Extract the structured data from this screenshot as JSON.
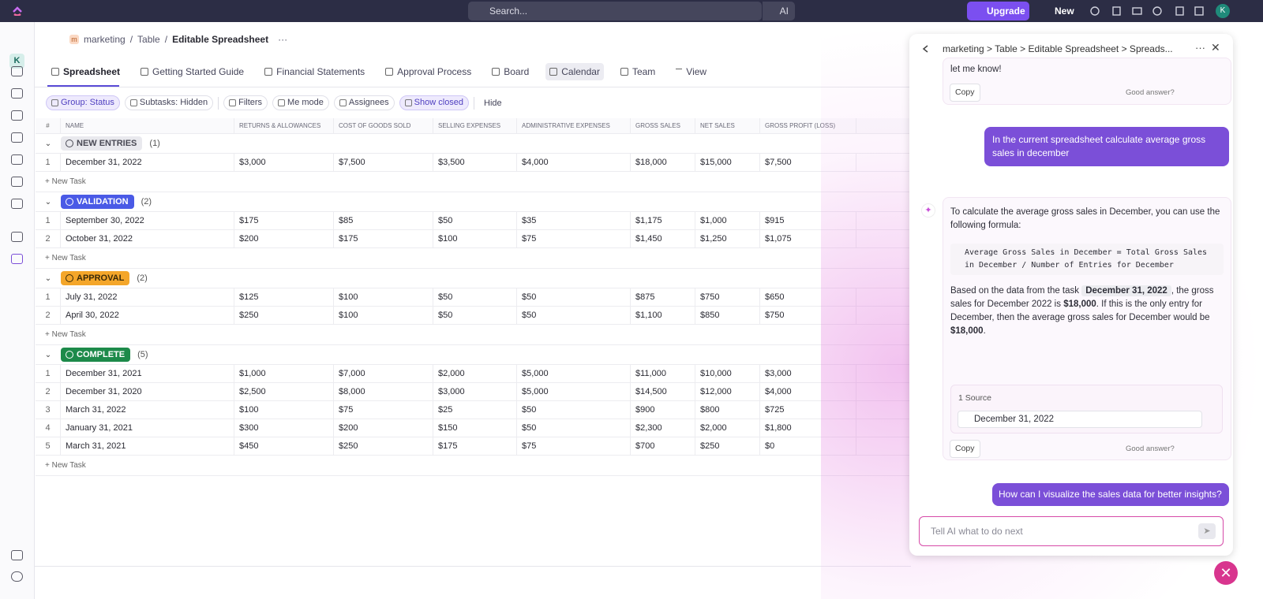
{
  "topbar": {
    "search": "Search...",
    "ai": "AI",
    "upgrade": "Upgrade",
    "new": "New",
    "avatar": "K"
  },
  "sidebar": {
    "workspace": "K"
  },
  "breadcrumb": {
    "space_icon": "m",
    "space": "marketing",
    "folder": "Table",
    "list": "Editable Spreadsheet"
  },
  "tabs": [
    "Spreadsheet",
    "Getting Started Guide",
    "Financial Statements",
    "Approval Process",
    "Board",
    "Calendar",
    "Team"
  ],
  "add_view": "View",
  "toolbar": [
    "Group: Status",
    "Subtasks: Hidden",
    "Filters",
    "Me mode",
    "Assignees",
    "Show closed"
  ],
  "hide": "Hide",
  "table": {
    "columns": [
      "#",
      "NAME",
      "RETURNS & ALLOWANCES",
      "COST OF GOODS SOLD",
      "SELLING EXPENSES",
      "ADMINISTRATIVE EXPENSES",
      "GROSS SALES",
      "NET SALES",
      "GROSS PROFIT (LOSS)"
    ],
    "new_task": "+ New Task",
    "groups": [
      {
        "status": "NEW ENTRIES",
        "count": "(1)",
        "color": "#e9e9ee",
        "text_color": "#4a4a55",
        "rows": [
          [
            "1",
            "December 31, 2022",
            "$3,000",
            "$7,500",
            "$3,500",
            "$4,000",
            "$18,000",
            "$15,000",
            "$7,500"
          ]
        ]
      },
      {
        "status": "VALIDATION",
        "count": "(2)",
        "color": "#4a5ae6",
        "text_color": "#ffffff",
        "rows": [
          [
            "1",
            "September 30, 2022",
            "$175",
            "$85",
            "$50",
            "$35",
            "$1,175",
            "$1,000",
            "$915"
          ],
          [
            "2",
            "October 31, 2022",
            "$200",
            "$175",
            "$100",
            "$75",
            "$1,450",
            "$1,250",
            "$1,075"
          ]
        ]
      },
      {
        "status": "APPROVAL",
        "count": "(2)",
        "color": "#f4a62a",
        "text_color": "#3a2a08",
        "rows": [
          [
            "1",
            "July 31, 2022",
            "$125",
            "$100",
            "$50",
            "$50",
            "$875",
            "$750",
            "$650"
          ],
          [
            "2",
            "April 30, 2022",
            "$250",
            "$100",
            "$50",
            "$50",
            "$1,100",
            "$850",
            "$750"
          ]
        ]
      },
      {
        "status": "COMPLETE",
        "count": "(5)",
        "color": "#1d8a4a",
        "text_color": "#ffffff",
        "rows": [
          [
            "1",
            "December 31, 2021",
            "$1,000",
            "$7,000",
            "$2,000",
            "$5,000",
            "$11,000",
            "$10,000",
            "$3,000"
          ],
          [
            "2",
            "December 31, 2020",
            "$2,500",
            "$8,000",
            "$3,000",
            "$5,000",
            "$14,500",
            "$12,000",
            "$4,000"
          ],
          [
            "3",
            "March 31, 2022",
            "$100",
            "$75",
            "$25",
            "$50",
            "$900",
            "$800",
            "$725"
          ],
          [
            "4",
            "January 31, 2021",
            "$300",
            "$200",
            "$150",
            "$50",
            "$2,300",
            "$2,000",
            "$1,800"
          ],
          [
            "5",
            "March 31, 2021",
            "$450",
            "$250",
            "$175",
            "$75",
            "$700",
            "$250",
            "$0"
          ]
        ]
      }
    ]
  },
  "ai_panel": {
    "breadcrumb": "marketing > Table > Editable Spreadsheet > Spreads...",
    "prev_tail": "let me know!",
    "copy": "Copy",
    "feedback": "Good answer?",
    "user_1": "In the current spreadsheet calculate average gross sales in december",
    "answer_intro": "To calculate the average gross sales in December, you can use the following formula:",
    "formula": "Average Gross Sales in December = Total Gross Sales in December / Number of Entries for December",
    "answer_parts": [
      "Based on the data from the task",
      "December 31, 2022",
      ", the gross sales for December 2022 is ",
      "$18,000",
      ". If this is the only entry for December, then the average gross sales for December would be ",
      "$18,000",
      "."
    ],
    "sources_label": "1 Source",
    "source": "December 31, 2022",
    "user_2": "How can I visualize the sales data for better insights?",
    "input_placeholder": "Tell AI what to do next"
  }
}
